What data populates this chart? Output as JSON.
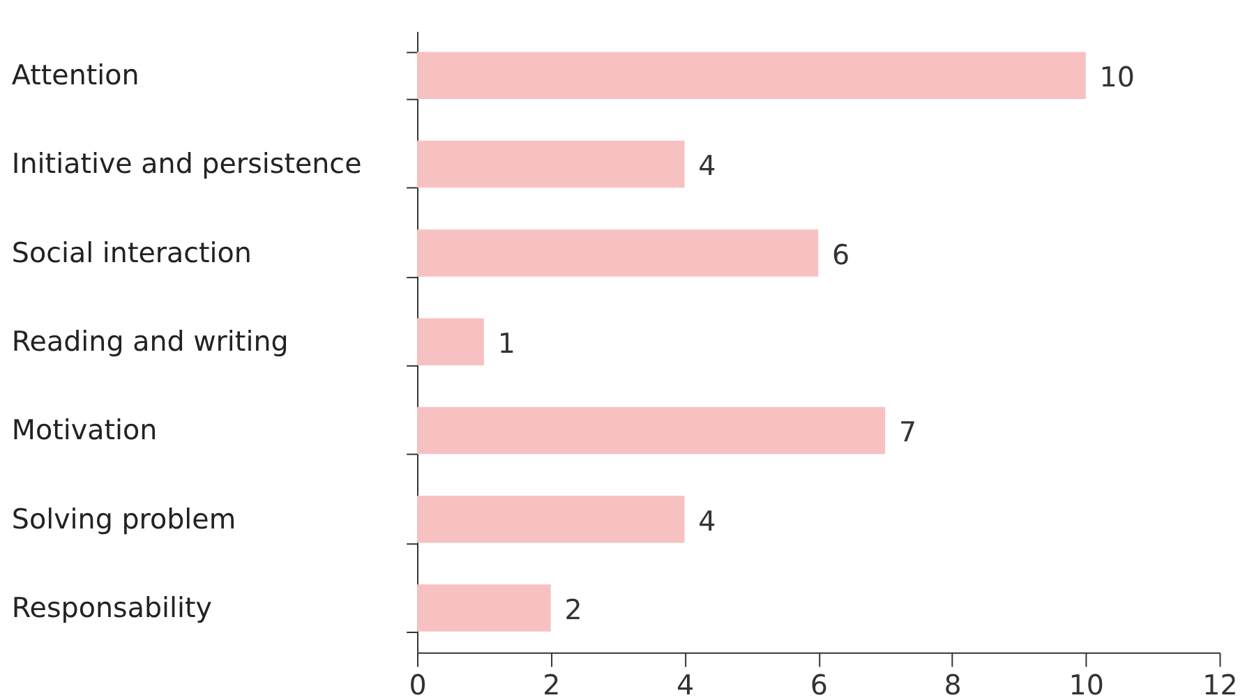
{
  "chart_data": {
    "type": "bar",
    "orientation": "horizontal",
    "categories": [
      "Attention",
      "Initiative and persistence",
      "Social interaction",
      "Reading and writing",
      "Motivation",
      "Solving problem",
      "Responsability"
    ],
    "values": [
      10,
      4,
      6,
      1,
      7,
      4,
      2
    ],
    "color": "#f7c1c2",
    "xlim": [
      0,
      12
    ],
    "xticks": [
      0,
      2,
      4,
      6,
      8,
      10,
      12
    ],
    "data_labels": true,
    "grid": false
  }
}
